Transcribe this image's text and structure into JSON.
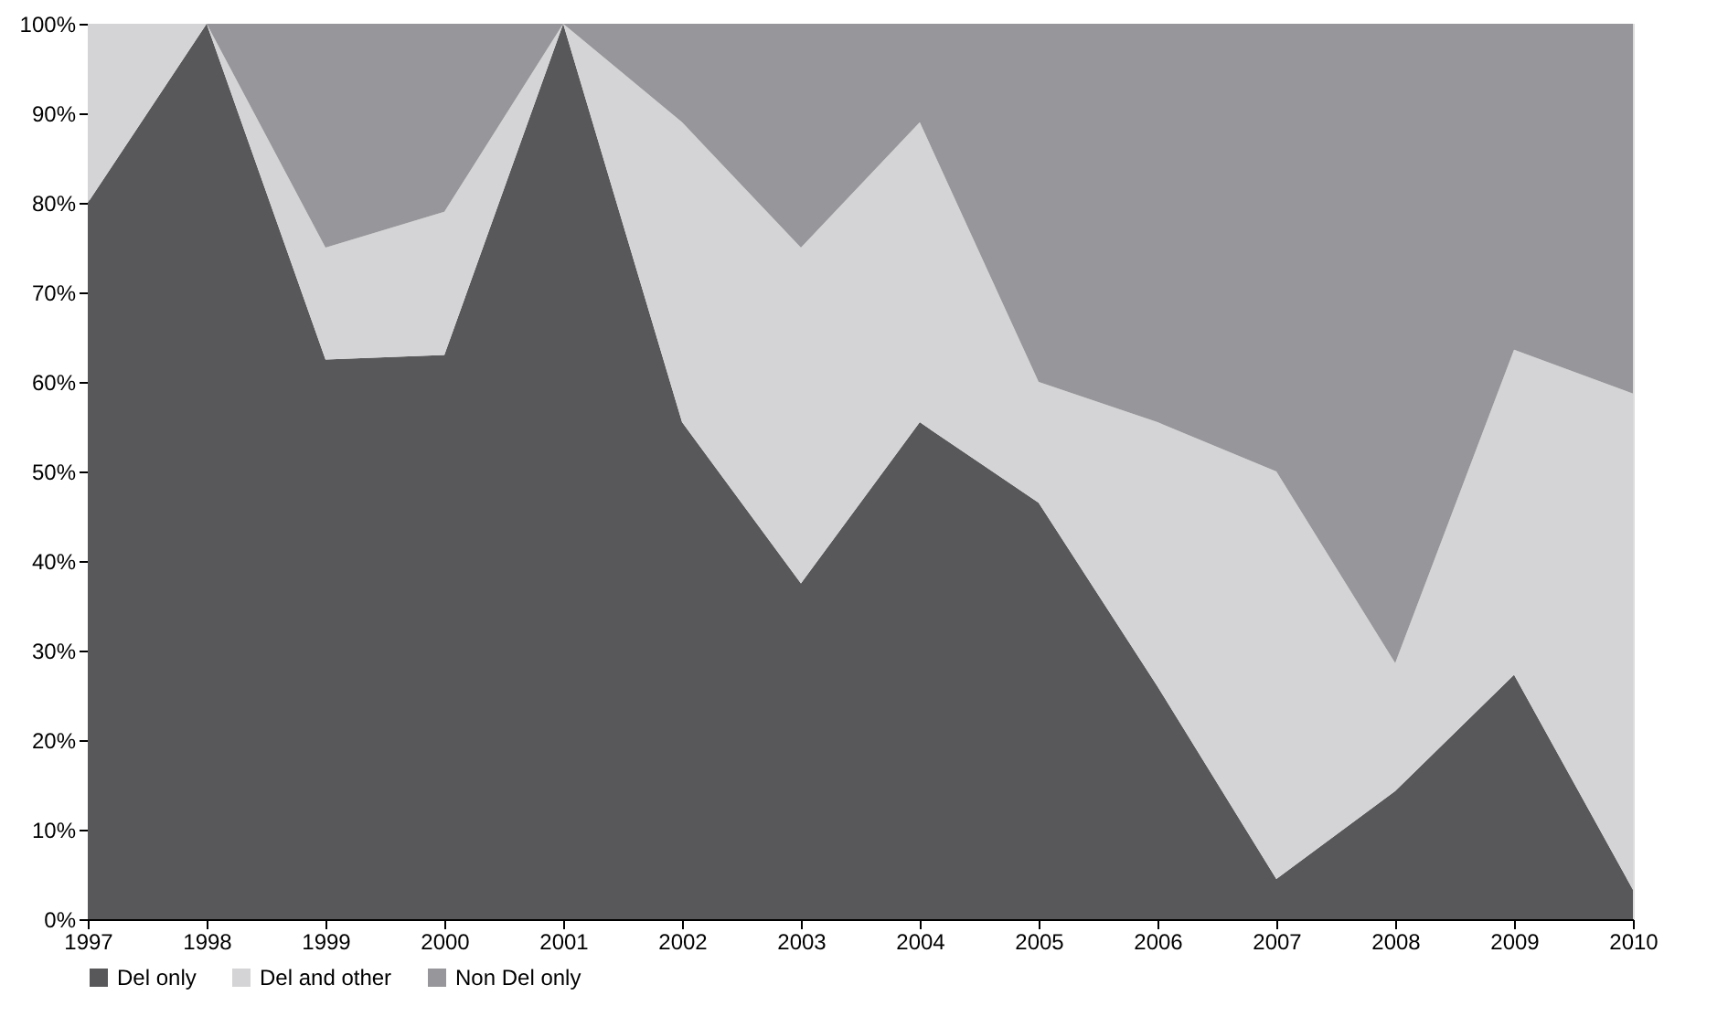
{
  "chart_data": {
    "type": "area",
    "stacked": true,
    "x": [
      1997,
      1998,
      1999,
      2000,
      2001,
      2002,
      2003,
      2004,
      2005,
      2006,
      2007,
      2008,
      2009,
      2010
    ],
    "series": [
      {
        "name": "Del only",
        "color": "#58585a",
        "values": [
          80,
          100,
          62.5,
          63,
          100,
          55.5,
          37.5,
          55.5,
          46.5,
          26,
          4.5,
          14.3,
          27.3,
          3.3
        ]
      },
      {
        "name": "Del and other",
        "color": "#d4d4d6",
        "values": [
          20,
          0,
          12.5,
          16,
          0,
          33.5,
          37.5,
          33.5,
          13.5,
          29.5,
          45.5,
          14.3,
          36.3,
          55.4
        ]
      },
      {
        "name": "Non Del only",
        "color": "#97979b",
        "values": [
          0,
          0,
          25,
          21,
          0,
          11,
          25,
          11,
          40,
          44.5,
          50,
          71.4,
          36.4,
          41.3
        ]
      }
    ],
    "xlim": [
      1997,
      2010
    ],
    "xticks": [
      1997,
      1998,
      1999,
      2000,
      2001,
      2002,
      2003,
      2004,
      2005,
      2006,
      2007,
      2008,
      2009,
      2010
    ],
    "ylim": [
      0,
      100
    ],
    "yticks": [
      {
        "value": 0,
        "label": "0%"
      },
      {
        "value": 10,
        "label": "10%"
      },
      {
        "value": 20,
        "label": "20%"
      },
      {
        "value": 30,
        "label": "30%"
      },
      {
        "value": 40,
        "label": "40%"
      },
      {
        "value": 50,
        "label": "50%"
      },
      {
        "value": 60,
        "label": "60%"
      },
      {
        "value": 70,
        "label": "70%"
      },
      {
        "value": 80,
        "label": "80%"
      },
      {
        "value": 90,
        "label": "90%"
      },
      {
        "value": 100,
        "label": "100%"
      }
    ],
    "grid": false,
    "legend": "bottom"
  }
}
